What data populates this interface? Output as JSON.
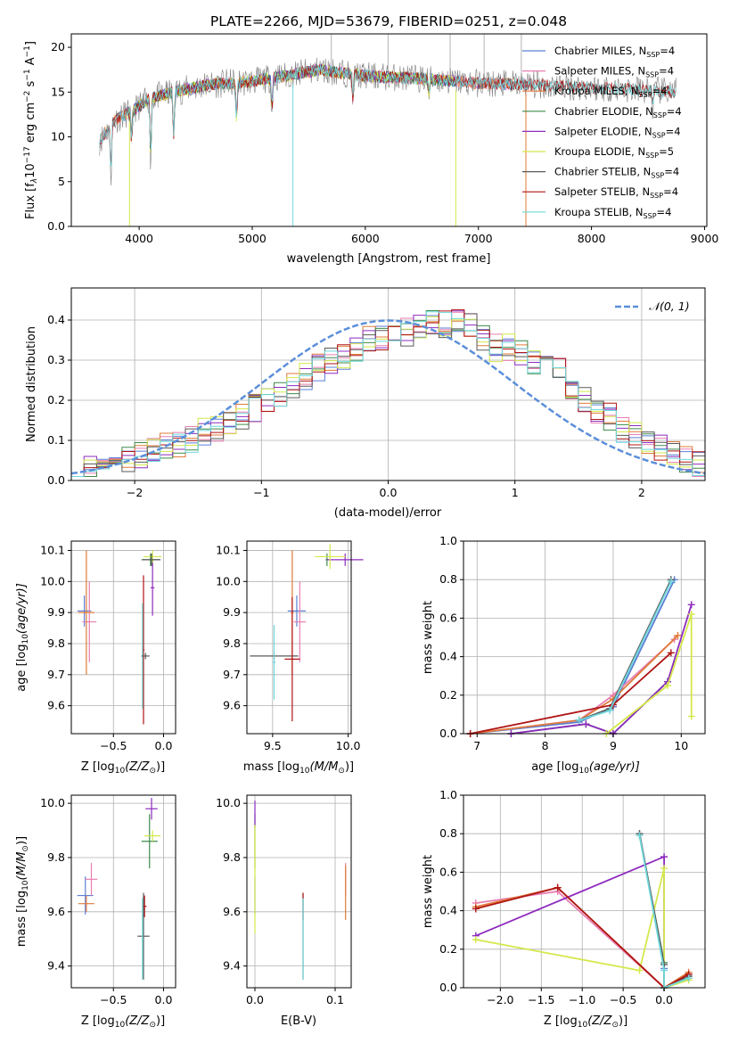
{
  "figure": {
    "title": "PLATE=2266, MJD=53679, FIBERID=0251, z=0.048",
    "colors": {
      "Chabrier MILES": "#5b7fd6",
      "Salpeter MILES": "#e87fb3",
      "Kroupa MILES": "#e07b39",
      "Chabrier ELODIE": "#3d8a4a",
      "Salpeter ELODIE": "#8e2bbf",
      "Kroupa ELODIE": "#d4e84a",
      "Chabrier STELIB": "#5a5a5a",
      "Salpeter STELIB": "#b01515",
      "Kroupa STELIB": "#6fd8dc",
      "data": "#808080",
      "normal": "#5b8fd9",
      "grid": "#b0b0b0"
    }
  },
  "labels": {
    "spectrum": {
      "xlabel": "wavelength [Angstrom, rest frame]",
      "ylabel_main": "Flux [f",
      "ylabel_sub": "λ",
      "ylabel_rest1": "10",
      "ylabel_exp1": "−17",
      "ylabel_rest2": " erg cm",
      "ylabel_exp2": "−2",
      "ylabel_rest3": " s",
      "ylabel_exp3": "−1",
      "ylabel_rest4": " A",
      "ylabel_exp4": "−1",
      "ylabel_end": "]"
    },
    "resid": {
      "xlabel": "(data-model)/error",
      "ylabel": "Normed distribution",
      "legend": "𝒩(0, 1)"
    },
    "p3": {
      "xlabel": "Z [log",
      "xsub": "10",
      "xrest": "(Z/Z",
      "xsun": "⊙",
      "xend": ")]",
      "ylabel": "age  [log",
      "ysub": "10",
      "yrest": "(age/yr)]"
    },
    "p4": {
      "xlabel": "mass [log",
      "xsub": "10",
      "xrest": "(M/M",
      "xsun": "⊙",
      "xend": ")]"
    },
    "p5": {
      "xlabel": "age  [log",
      "xsub": "10",
      "xrest": "(age/yr)]",
      "ylabel": "mass weight"
    },
    "p6": {
      "ylabel": "mass [log",
      "ysub": "10",
      "yrest": "(M/M",
      "ysun": "⊙",
      "yend": ")]"
    },
    "p7": {
      "xlabel": "E(B-V)"
    },
    "p8": {
      "ylabel": "mass weight"
    }
  },
  "chart_data": [
    {
      "type": "line",
      "title": "PLATE=2266, MJD=53679, FIBERID=0251, z=0.048",
      "xlabel": "wavelength [Angstrom, rest frame]",
      "ylabel": "Flux [fλ10^-17 erg cm^-2 s^-1 A^-1]",
      "xlim": [
        3400,
        9020
      ],
      "ylim": [
        0,
        21.5
      ],
      "xticks": [
        4000,
        5000,
        6000,
        7000,
        8000,
        9000
      ],
      "yticks": [
        0,
        5,
        10,
        15,
        20
      ],
      "legend_position": "top-right",
      "series": [
        {
          "name": "Chabrier MILES",
          "label": "Chabrier MILES, N",
          "sub": "SSP",
          "eq": "=4",
          "color": "#5b7fd6",
          "range": [
            3650,
            7420
          ]
        },
        {
          "name": "Salpeter MILES",
          "label": "Salpeter MILES, N",
          "sub": "SSP",
          "eq": "=4",
          "color": "#e87fb3",
          "range": [
            3650,
            7420
          ]
        },
        {
          "name": "Kroupa MILES",
          "label": "Kroupa MILES, N",
          "sub": "SSP",
          "eq": "=4",
          "color": "#e07b39",
          "range": [
            3650,
            7420
          ]
        },
        {
          "name": "Chabrier ELODIE",
          "label": "Chabrier ELODIE, N",
          "sub": "SSP",
          "eq": "=4",
          "color": "#3d8a4a",
          "range": [
            3900,
            6800
          ]
        },
        {
          "name": "Salpeter ELODIE",
          "label": "Salpeter ELODIE, N",
          "sub": "SSP",
          "eq": "=4",
          "color": "#8e2bbf",
          "range": [
            3900,
            6800
          ]
        },
        {
          "name": "Kroupa ELODIE",
          "label": "Kroupa ELODIE, N",
          "sub": "SSP",
          "eq": "=5",
          "color": "#d4e84a",
          "range": [
            3900,
            6800
          ]
        },
        {
          "name": "Chabrier STELIB",
          "label": "Chabrier STELIB, N",
          "sub": "SSP",
          "eq": "=4",
          "color": "#5a5a5a",
          "range": [
            3650,
            8750
          ]
        },
        {
          "name": "Salpeter STELIB",
          "label": "Salpeter STELIB, N",
          "sub": "SSP",
          "eq": "=4",
          "color": "#b01515",
          "range": [
            3650,
            8750
          ]
        },
        {
          "name": "Kroupa STELIB",
          "label": "Kroupa STELIB, N",
          "sub": "SSP",
          "eq": "=4",
          "color": "#6fd8dc",
          "range": [
            3650,
            8750
          ]
        }
      ],
      "continuum": [
        [
          3650,
          9.5
        ],
        [
          3700,
          10.5
        ],
        [
          3800,
          12.0
        ],
        [
          3950,
          13.0
        ],
        [
          4100,
          14.3
        ],
        [
          4300,
          15.0
        ],
        [
          4600,
          15.8
        ],
        [
          5000,
          16.2
        ],
        [
          5300,
          16.8
        ],
        [
          5600,
          17.5
        ],
        [
          6000,
          16.8
        ],
        [
          6500,
          16.5
        ],
        [
          7000,
          16.0
        ],
        [
          7500,
          15.8
        ],
        [
          8000,
          15.5
        ],
        [
          8500,
          15.2
        ],
        [
          8750,
          15.0
        ]
      ],
      "features": [
        [
          3750,
          5.0
        ],
        [
          3933,
          9.0
        ],
        [
          4102,
          6.5
        ],
        [
          4305,
          9.5
        ],
        [
          4861,
          11.5
        ],
        [
          5175,
          12.5
        ],
        [
          5890,
          14.0
        ],
        [
          6563,
          14.5
        ],
        [
          8542,
          13.0
        ]
      ],
      "drops": [
        {
          "x": 3915,
          "y": 0,
          "series": "Kroupa ELODIE"
        },
        {
          "x": 5360,
          "y": 0,
          "series": "Kroupa STELIB"
        },
        {
          "x": 6800,
          "y": 0,
          "series": "Kroupa ELODIE"
        },
        {
          "x": 7420,
          "y": 0,
          "series": "Kroupa MILES"
        }
      ]
    },
    {
      "type": "step",
      "xlabel": "(data-model)/error",
      "ylabel": "Normed distribution",
      "xlim": [
        -2.5,
        2.5
      ],
      "ylim": [
        0,
        0.48
      ],
      "xticks": [
        -2,
        -1,
        0,
        1,
        2
      ],
      "yticks": [
        0.0,
        0.1,
        0.2,
        0.3,
        0.4
      ],
      "grid": true,
      "legend_position": "top-right",
      "bins": {
        "start": -2.5,
        "width": 0.1,
        "count": 50
      },
      "reference": {
        "name": "N(0,1)",
        "mean": 0,
        "sigma": 1
      },
      "base_values": [
        0.03,
        0.03,
        0.04,
        0.05,
        0.05,
        0.06,
        0.08,
        0.09,
        0.09,
        0.1,
        0.12,
        0.13,
        0.15,
        0.16,
        0.18,
        0.2,
        0.22,
        0.24,
        0.26,
        0.28,
        0.3,
        0.31,
        0.33,
        0.35,
        0.36,
        0.38,
        0.37,
        0.38,
        0.39,
        0.39,
        0.4,
        0.39,
        0.36,
        0.33,
        0.33,
        0.32,
        0.3,
        0.28,
        0.27,
        0.23,
        0.2,
        0.17,
        0.16,
        0.13,
        0.11,
        0.09,
        0.08,
        0.07,
        0.05,
        0.04
      ]
    },
    {
      "type": "errorbar",
      "xlabel": "Z [log10(Z/Zsun)]",
      "ylabel": "age [log10(age/yr)]",
      "xlim": [
        -0.92,
        0.12
      ],
      "ylim": [
        9.51,
        10.13
      ],
      "xticks": [
        -0.5,
        0.0
      ],
      "yticks": [
        9.6,
        9.7,
        9.8,
        9.9,
        10.0,
        10.1
      ],
      "points": [
        {
          "s": 0,
          "x": -0.79,
          "xe": 0.07,
          "y": 9.905,
          "ye": 0.05
        },
        {
          "s": 1,
          "x": -0.74,
          "xe": 0.07,
          "y": 9.87,
          "ye": 0.13
        },
        {
          "s": 2,
          "x": -0.77,
          "xe": 0.08,
          "y": 9.9,
          "ye": 0.2
        },
        {
          "s": 3,
          "x": -0.13,
          "xe": 0.09,
          "y": 10.07,
          "ye": 0.02
        },
        {
          "s": 4,
          "x": -0.11,
          "xe": 0.02,
          "y": 9.98,
          "ye": 0.09
        },
        {
          "s": 5,
          "x": -0.11,
          "xe": 0.09,
          "y": 10.08,
          "ye": 0.02
        },
        {
          "s": 6,
          "x": -0.12,
          "xe": 0.09,
          "y": 10.07,
          "ye": 0.02
        },
        {
          "s": 7,
          "x": -0.2,
          "xe": 0.01,
          "y": 9.78,
          "ye": 0.24
        },
        {
          "s": 8,
          "x": -0.21,
          "xe": 0.01,
          "y": 9.76,
          "ye": 0.17
        },
        {
          "s": 6,
          "x": -0.18,
          "xe": 0.04,
          "y": 9.76,
          "ye": 0.01
        }
      ]
    },
    {
      "type": "errorbar",
      "xlabel": "mass [log10(M/Msun)]",
      "xlim": [
        9.33,
        10.02
      ],
      "ylim": [
        9.51,
        10.13
      ],
      "xticks": [
        9.5,
        10.0
      ],
      "yticks": [
        9.6,
        9.7,
        9.8,
        9.9,
        10.0,
        10.1
      ],
      "points": [
        {
          "s": 0,
          "x": 9.66,
          "xe": 0.06,
          "y": 9.905,
          "ye": 0.05
        },
        {
          "s": 1,
          "x": 9.68,
          "xe": 0.04,
          "y": 9.87,
          "ye": 0.13
        },
        {
          "s": 2,
          "x": 9.63,
          "xe": 0.01,
          "y": 9.9,
          "ye": 0.2
        },
        {
          "s": 3,
          "x": 9.86,
          "xe": 0.01,
          "y": 10.07,
          "ye": 0.02
        },
        {
          "s": 4,
          "x": 9.98,
          "xe": 0.12,
          "y": 10.07,
          "ye": 0.02
        },
        {
          "s": 5,
          "x": 9.88,
          "xe": 0.1,
          "y": 10.08,
          "ye": 0.04
        },
        {
          "s": 6,
          "x": 9.51,
          "xe": 0.16,
          "y": 9.76,
          "ye": 0.01
        },
        {
          "s": 7,
          "x": 9.63,
          "xe": 0.05,
          "y": 9.75,
          "ye": 0.2
        },
        {
          "s": 8,
          "x": 9.51,
          "xe": 0.01,
          "y": 9.74,
          "ye": 0.12
        }
      ]
    },
    {
      "type": "line",
      "xlabel": "age [log10(age/yr)]",
      "ylabel": "mass weight",
      "xlim": [
        6.8,
        10.35
      ],
      "ylim": [
        0,
        1.0
      ],
      "xticks": [
        7,
        8,
        9,
        10
      ],
      "yticks": [
        0.0,
        0.2,
        0.4,
        0.6,
        0.8,
        1.0
      ],
      "series": [
        {
          "s": 0,
          "x": [
            6.9,
            8.5,
            9.0,
            9.9
          ],
          "y": [
            0.0,
            0.06,
            0.14,
            0.8
          ]
        },
        {
          "s": 1,
          "x": [
            6.9,
            8.5,
            9.0,
            9.9
          ],
          "y": [
            0.0,
            0.07,
            0.2,
            0.49
          ]
        },
        {
          "s": 2,
          "x": [
            6.9,
            8.5,
            9.0,
            9.95
          ],
          "y": [
            0.0,
            0.07,
            0.18,
            0.51
          ]
        },
        {
          "s": 3,
          "x": [
            7.5,
            8.6,
            9.0,
            9.8
          ],
          "y": [
            0.0,
            0.05,
            0.0,
            0.27
          ]
        },
        {
          "s": 4,
          "x": [
            7.5,
            8.6,
            9.0,
            9.8,
            10.15
          ],
          "y": [
            0.0,
            0.05,
            0.0,
            0.27,
            0.67
          ]
        },
        {
          "s": 5,
          "x": [
            8.9,
            9.8,
            10.15,
            10.15
          ],
          "y": [
            0.0,
            0.25,
            0.62,
            0.09
          ]
        },
        {
          "s": 6,
          "x": [
            8.5,
            8.95,
            9.85
          ],
          "y": [
            0.07,
            0.13,
            0.8
          ]
        },
        {
          "s": 7,
          "x": [
            6.9,
            9.0,
            9.85
          ],
          "y": [
            0.0,
            0.15,
            0.42
          ]
        },
        {
          "s": 8,
          "x": [
            8.5,
            8.95,
            9.85
          ],
          "y": [
            0.07,
            0.12,
            0.79
          ]
        }
      ]
    },
    {
      "type": "errorbar",
      "ylabel": "mass [log10(M/Msun)]",
      "xlabel": "Z [log10(Z/Zsun)]",
      "xlim": [
        -0.92,
        0.12
      ],
      "ylim": [
        9.32,
        10.03
      ],
      "xticks": [
        -0.5,
        0.0
      ],
      "yticks": [
        9.4,
        9.6,
        9.8,
        10.0
      ],
      "points": [
        {
          "s": 0,
          "x": -0.78,
          "xe": 0.08,
          "y": 9.66,
          "ye": 0.07
        },
        {
          "s": 1,
          "x": -0.72,
          "xe": 0.06,
          "y": 9.72,
          "ye": 0.06
        },
        {
          "s": 2,
          "x": -0.77,
          "xe": 0.08,
          "y": 9.63,
          "ye": 0.03
        },
        {
          "s": 3,
          "x": -0.14,
          "xe": 0.08,
          "y": 9.86,
          "ye": 0.1
        },
        {
          "s": 4,
          "x": -0.12,
          "xe": 0.06,
          "y": 9.98,
          "ye": 0.04
        },
        {
          "s": 5,
          "x": -0.11,
          "xe": 0.08,
          "y": 9.88,
          "ye": 0.02
        },
        {
          "s": 6,
          "x": -0.2,
          "xe": 0.06,
          "y": 9.51,
          "ye": 0.16
        },
        {
          "s": 7,
          "x": -0.19,
          "xe": 0.02,
          "y": 9.62,
          "ye": 0.04
        },
        {
          "s": 8,
          "x": -0.21,
          "xe": 0.01,
          "y": 9.5,
          "ye": 0.15
        }
      ]
    },
    {
      "type": "errorbar",
      "xlabel": "E(B-V)",
      "xlim": [
        -0.01,
        0.12
      ],
      "ylim": [
        9.32,
        10.03
      ],
      "xticks": [
        0.0,
        0.1
      ],
      "yticks": [
        9.4,
        9.6,
        9.8,
        10.0
      ],
      "points": [
        {
          "s": 0,
          "x": 0.0,
          "xe": 0,
          "y": 9.66,
          "ye": 0.07
        },
        {
          "s": 1,
          "x": 0.113,
          "xe": 0,
          "y": 9.72,
          "ye": 0.06
        },
        {
          "s": 2,
          "x": 0.113,
          "xe": 0,
          "y": 9.67,
          "ye": 0.1
        },
        {
          "s": 3,
          "x": 0.0,
          "xe": 0,
          "y": 9.86,
          "ye": 0.1
        },
        {
          "s": 4,
          "x": 0.0,
          "xe": 0,
          "y": 9.96,
          "ye": 0.05
        },
        {
          "s": 5,
          "x": 0.0,
          "xe": 0,
          "y": 9.72,
          "ye": 0.2
        },
        {
          "s": 6,
          "x": 0.06,
          "xe": 0,
          "y": 9.51,
          "ye": 0.16
        },
        {
          "s": 7,
          "x": 0.06,
          "xe": 0,
          "y": 9.62,
          "ye": 0.05
        },
        {
          "s": 8,
          "x": 0.06,
          "xe": 0,
          "y": 9.5,
          "ye": 0.15
        }
      ]
    },
    {
      "type": "line",
      "xlabel": "Z [log10(Z/Zsun)]",
      "ylabel": "mass weight",
      "xlim": [
        -2.45,
        0.5
      ],
      "ylim": [
        0,
        1.0
      ],
      "xticks": [
        -2.0,
        -1.5,
        -1.0,
        -0.5,
        0.0
      ],
      "yticks": [
        0.0,
        0.2,
        0.4,
        0.6,
        0.8,
        1.0
      ],
      "series": [
        {
          "s": 0,
          "x": [
            -0.3,
            0.0,
            0.0,
            0.3
          ],
          "y": [
            0.8,
            0.1,
            0.0,
            0.06
          ]
        },
        {
          "s": 1,
          "x": [
            -2.3,
            -1.3,
            0.0,
            0.3
          ],
          "y": [
            0.44,
            0.5,
            0.0,
            0.07
          ]
        },
        {
          "s": 2,
          "x": [
            -2.3,
            -1.3,
            0.0,
            0.3
          ],
          "y": [
            0.42,
            0.52,
            0.0,
            0.08
          ]
        },
        {
          "s": 3,
          "x": [
            -0.3,
            0.0,
            0.0,
            0.3
          ],
          "y": [
            0.79,
            0.13,
            0.0,
            0.05
          ]
        },
        {
          "s": 4,
          "x": [
            -2.3,
            0.0,
            0.0
          ],
          "y": [
            0.27,
            0.68,
            0.0
          ]
        },
        {
          "s": 5,
          "x": [
            -2.3,
            -0.3,
            0.0,
            0.0,
            0.3
          ],
          "y": [
            0.25,
            0.09,
            0.62,
            0.0,
            0.04
          ]
        },
        {
          "s": 6,
          "x": [
            -0.3,
            0.0,
            0.0,
            0.3
          ],
          "y": [
            0.8,
            0.12,
            0.0,
            0.06
          ]
        },
        {
          "s": 7,
          "x": [
            -2.3,
            -1.3,
            0.0,
            0.3
          ],
          "y": [
            0.41,
            0.52,
            0.0,
            0.07
          ]
        },
        {
          "s": 8,
          "x": [
            -0.3,
            0.0,
            0.0,
            0.3
          ],
          "y": [
            0.79,
            0.09,
            0.0,
            0.05
          ]
        }
      ]
    }
  ]
}
